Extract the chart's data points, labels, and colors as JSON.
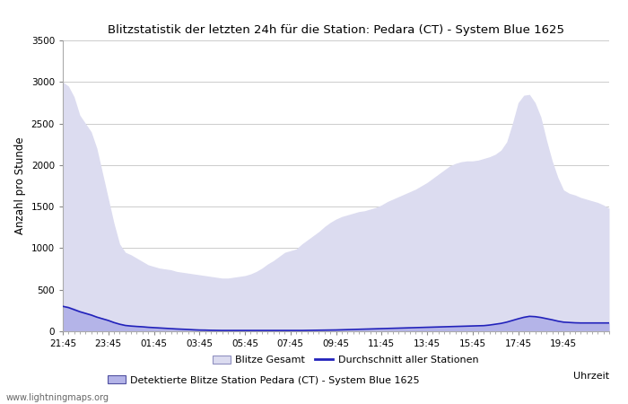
{
  "title": "Blitzstatistik der letzten 24h für die Station: Pedara (CT) - System Blue 1625",
  "ylabel": "Anzahl pro Stunde",
  "xlabel": "Uhrzeit",
  "xlabels": [
    "21:45",
    "23:45",
    "01:45",
    "03:45",
    "05:45",
    "07:45",
    "09:45",
    "11:45",
    "13:45",
    "15:45",
    "17:45",
    "19:45"
  ],
  "ylim": [
    0,
    3500
  ],
  "yticks": [
    0,
    500,
    1000,
    1500,
    2000,
    2500,
    3000,
    3500
  ],
  "background_color": "#ffffff",
  "plot_bg_color": "#ffffff",
  "color_gesamt_fill": "#dcdcf0",
  "color_station_fill": "#b4b4e8",
  "color_avg_line": "#2222bb",
  "watermark": "www.lightningmaps.org",
  "legend_gesamt": "Blitze Gesamt",
  "legend_station": "Detektierte Blitze Station Pedara (CT) - System Blue 1625",
  "legend_avg": "Durchschnitt aller Stationen",
  "n_points": 97,
  "gesamt_values": [
    3000,
    2950,
    2820,
    2600,
    2500,
    2400,
    2200,
    1900,
    1600,
    1300,
    1050,
    950,
    920,
    880,
    840,
    800,
    780,
    760,
    750,
    740,
    720,
    710,
    700,
    690,
    680,
    670,
    660,
    650,
    640,
    640,
    650,
    660,
    670,
    690,
    720,
    760,
    810,
    850,
    900,
    950,
    970,
    990,
    1050,
    1100,
    1150,
    1200,
    1260,
    1310,
    1350,
    1380,
    1400,
    1420,
    1440,
    1450,
    1470,
    1490,
    1520,
    1560,
    1590,
    1620,
    1650,
    1680,
    1710,
    1750,
    1790,
    1840,
    1890,
    1940,
    1990,
    2020,
    2040,
    2050,
    2050,
    2060,
    2080,
    2100,
    2130,
    2180,
    2280,
    2500,
    2750,
    2840,
    2850,
    2750,
    2580,
    2300,
    2050,
    1850,
    1700,
    1660,
    1640,
    1610,
    1590,
    1570,
    1550,
    1520,
    1480
  ],
  "station_values": [
    310,
    300,
    280,
    250,
    230,
    210,
    180,
    160,
    140,
    110,
    90,
    75,
    68,
    62,
    58,
    52,
    48,
    44,
    40,
    36,
    32,
    28,
    25,
    22,
    19,
    17,
    15,
    13,
    12,
    11,
    10,
    10,
    10,
    10,
    10,
    10,
    10,
    10,
    10,
    10,
    10,
    10,
    10,
    11,
    12,
    13,
    14,
    15,
    16,
    18,
    20,
    22,
    24,
    26,
    28,
    30,
    32,
    34,
    36,
    38,
    40,
    42,
    44,
    46,
    48,
    50,
    52,
    54,
    56,
    58,
    60,
    62,
    64,
    66,
    68,
    75,
    85,
    95,
    110,
    130,
    150,
    170,
    185,
    180,
    170,
    155,
    140,
    125,
    112,
    108,
    104,
    100,
    100,
    100,
    100,
    100,
    100
  ],
  "avg_values": [
    300,
    285,
    260,
    235,
    215,
    195,
    170,
    150,
    130,
    105,
    85,
    70,
    63,
    58,
    54,
    48,
    44,
    40,
    36,
    32,
    28,
    25,
    22,
    18,
    15,
    14,
    12,
    11,
    10,
    10,
    10,
    10,
    10,
    10,
    10,
    10,
    10,
    10,
    10,
    10,
    10,
    10,
    10,
    11,
    12,
    13,
    14,
    15,
    16,
    18,
    20,
    22,
    24,
    26,
    28,
    30,
    32,
    34,
    36,
    38,
    40,
    42,
    44,
    46,
    48,
    50,
    52,
    54,
    56,
    58,
    60,
    62,
    64,
    66,
    68,
    75,
    85,
    95,
    110,
    130,
    150,
    168,
    180,
    176,
    166,
    152,
    138,
    122,
    110,
    106,
    102,
    100,
    100,
    100,
    100,
    100,
    100
  ]
}
